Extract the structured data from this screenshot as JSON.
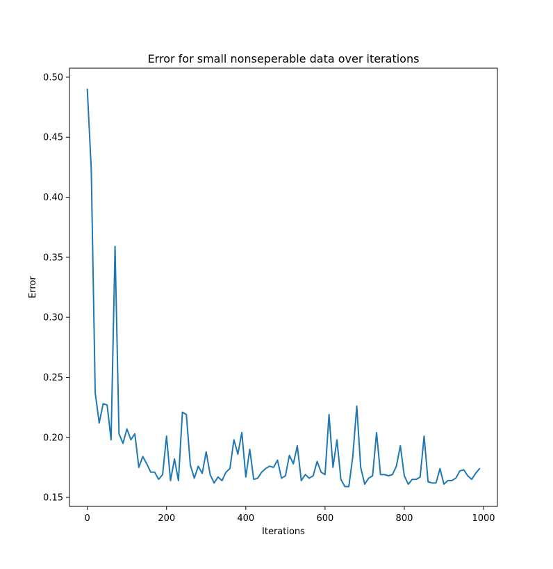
{
  "chart_data": {
    "type": "line",
    "title": "Error for small nonseperable data over iterations",
    "xlabel": "Iterations",
    "ylabel": "Error",
    "xlim": [
      -45,
      1035
    ],
    "ylim": [
      0.1425,
      0.5075
    ],
    "xticks": [
      0,
      200,
      400,
      600,
      800,
      1000
    ],
    "yticks": [
      0.15,
      0.2,
      0.25,
      0.3,
      0.35,
      0.4,
      0.45,
      0.5
    ],
    "xtick_labels": [
      "0",
      "200",
      "400",
      "600",
      "800",
      "1000"
    ],
    "ytick_labels": [
      "0.15",
      "0.20",
      "0.25",
      "0.30",
      "0.35",
      "0.40",
      "0.45",
      "0.50"
    ],
    "grid": false,
    "colors": {
      "line": "#1f77b4"
    },
    "series": [
      {
        "x": [
          0,
          10,
          20,
          30,
          40,
          50,
          60,
          70,
          80,
          90,
          100,
          110,
          120,
          130,
          140,
          150,
          160,
          170,
          180,
          190,
          200,
          210,
          220,
          230,
          240,
          250,
          260,
          270,
          280,
          290,
          300,
          310,
          320,
          330,
          340,
          350,
          360,
          370,
          380,
          390,
          400,
          410,
          420,
          430,
          440,
          450,
          460,
          470,
          480,
          490,
          500,
          510,
          520,
          530,
          540,
          550,
          560,
          570,
          580,
          590,
          600,
          610,
          620,
          630,
          640,
          650,
          660,
          670,
          680,
          690,
          700,
          710,
          720,
          730,
          740,
          750,
          760,
          770,
          780,
          790,
          800,
          810,
          820,
          830,
          840,
          850,
          860,
          870,
          880,
          890,
          900,
          910,
          920,
          930,
          940,
          950,
          960,
          970,
          980,
          990
        ],
        "values": [
          0.49,
          0.423,
          0.237,
          0.212,
          0.228,
          0.227,
          0.198,
          0.359,
          0.203,
          0.195,
          0.207,
          0.198,
          0.203,
          0.175,
          0.184,
          0.178,
          0.171,
          0.171,
          0.165,
          0.169,
          0.201,
          0.164,
          0.182,
          0.164,
          0.221,
          0.219,
          0.177,
          0.166,
          0.176,
          0.17,
          0.188,
          0.169,
          0.162,
          0.167,
          0.164,
          0.171,
          0.174,
          0.198,
          0.186,
          0.204,
          0.167,
          0.19,
          0.165,
          0.166,
          0.171,
          0.174,
          0.176,
          0.175,
          0.181,
          0.166,
          0.168,
          0.185,
          0.178,
          0.193,
          0.164,
          0.169,
          0.166,
          0.168,
          0.18,
          0.171,
          0.169,
          0.219,
          0.175,
          0.198,
          0.165,
          0.159,
          0.159,
          0.184,
          0.226,
          0.175,
          0.161,
          0.166,
          0.168,
          0.204,
          0.169,
          0.169,
          0.168,
          0.169,
          0.176,
          0.193,
          0.168,
          0.161,
          0.165,
          0.165,
          0.167,
          0.201,
          0.163,
          0.162,
          0.162,
          0.174,
          0.161,
          0.164,
          0.164,
          0.166,
          0.172,
          0.173,
          0.168,
          0.165,
          0.17,
          0.174
        ]
      }
    ]
  }
}
